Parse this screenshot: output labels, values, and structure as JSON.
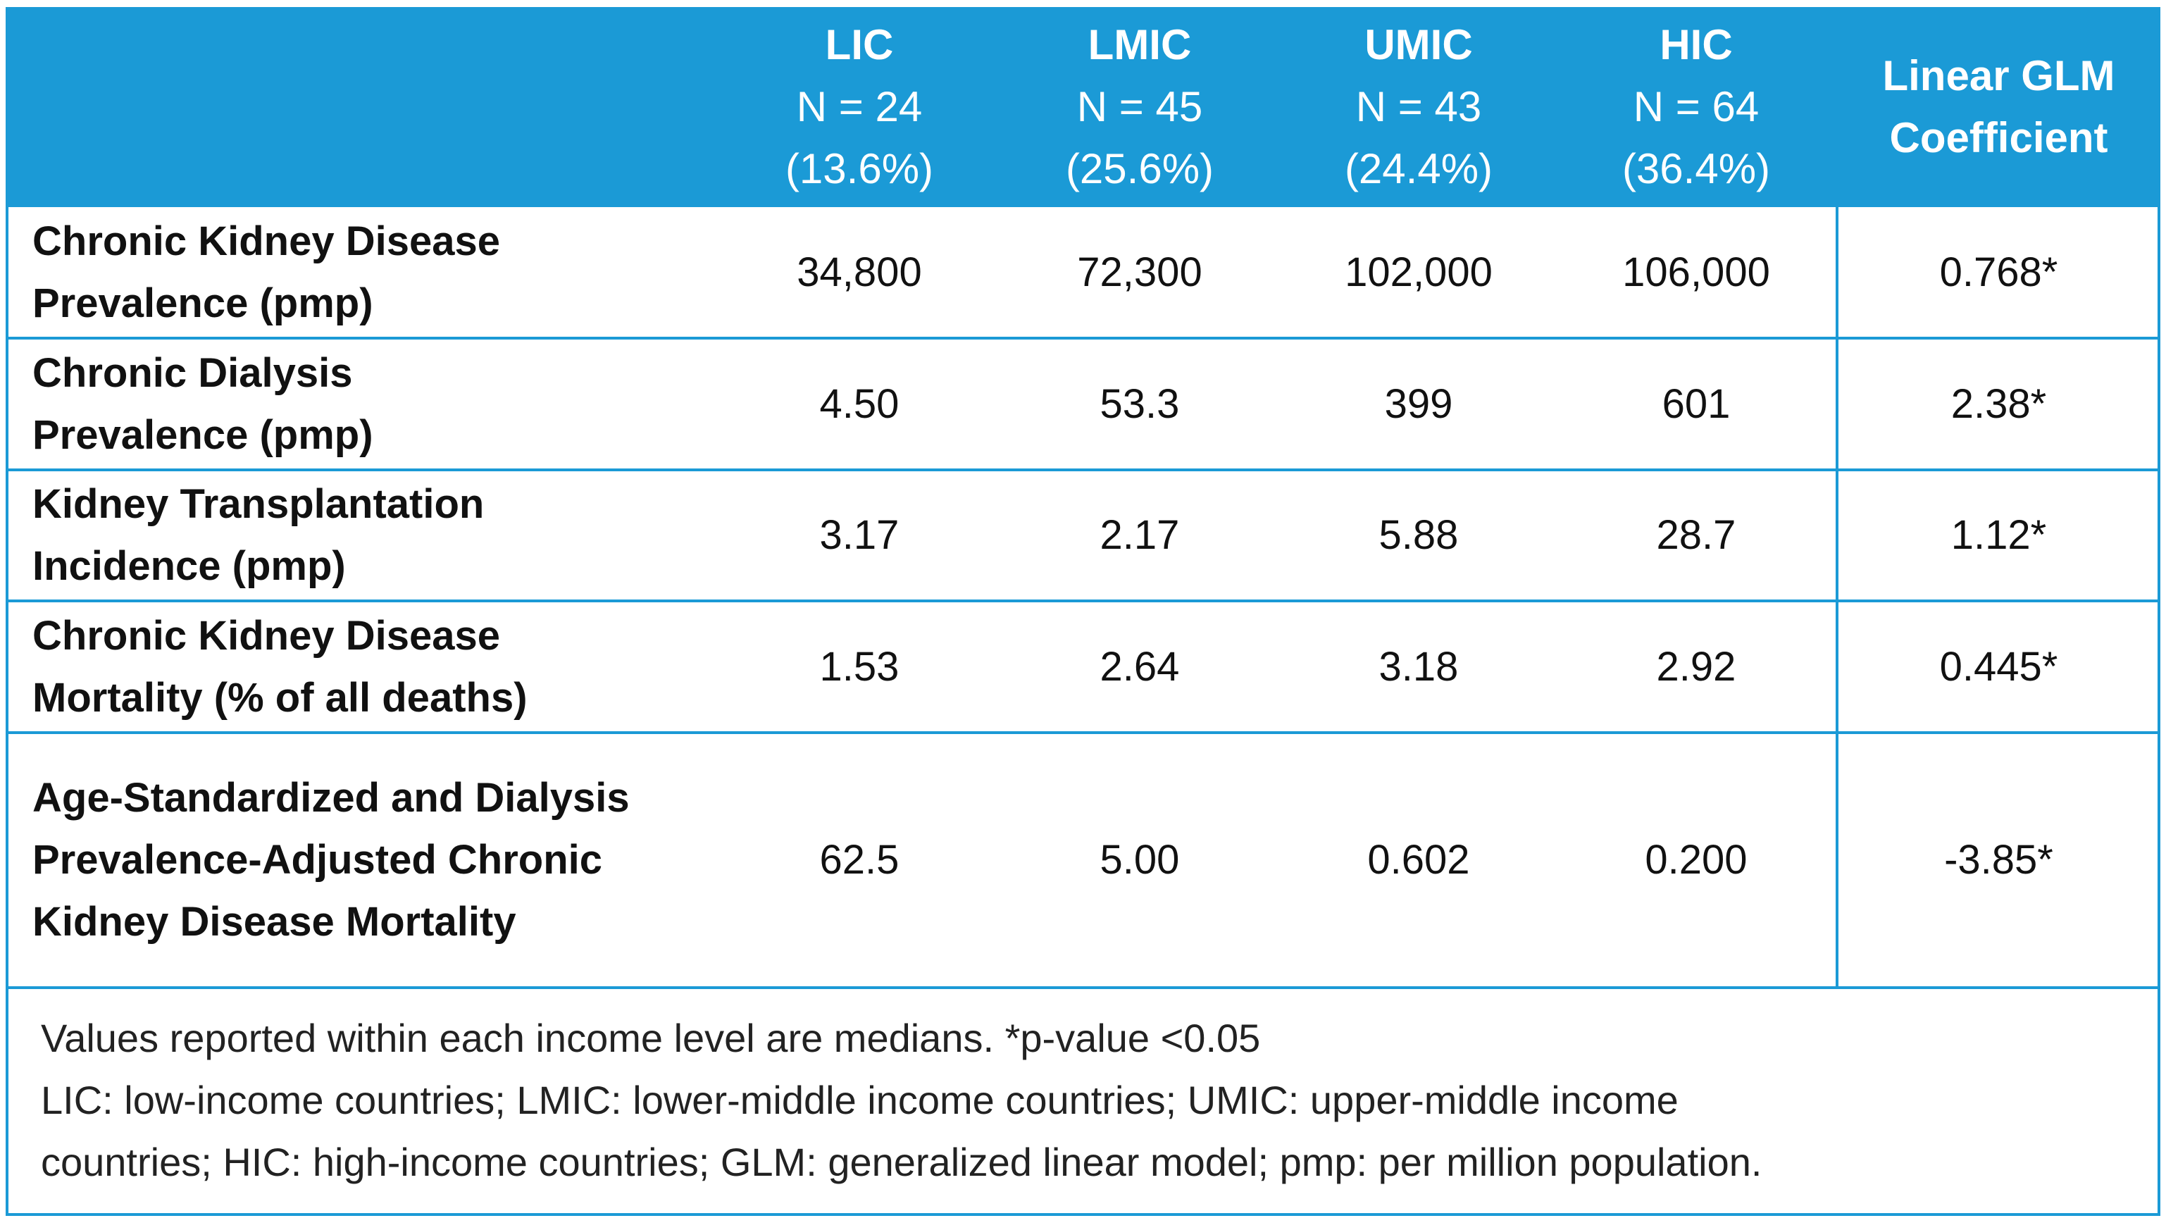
{
  "header": {
    "columns": [
      {
        "name": "LIC",
        "n": "N = 24",
        "pct": "(13.6%)"
      },
      {
        "name": "LMIC",
        "n": "N = 45",
        "pct": "(25.6%)"
      },
      {
        "name": "UMIC",
        "n": "N = 43",
        "pct": "(24.4%)"
      },
      {
        "name": "HIC",
        "n": "N = 64",
        "pct": "(36.4%)"
      }
    ],
    "coefficient": [
      "Linear GLM",
      "Coefficient"
    ]
  },
  "table": {
    "rows": [
      {
        "label": [
          "Chronic Kidney Disease",
          "Prevalence (pmp)"
        ],
        "values": [
          "34,800",
          "72,300",
          "102,000",
          "106,000"
        ],
        "coefficient": "0.768*"
      },
      {
        "label": [
          "Chronic Dialysis",
          "Prevalence (pmp)"
        ],
        "values": [
          "4.50",
          "53.3",
          "399",
          "601"
        ],
        "coefficient": "2.38*"
      },
      {
        "label": [
          "Kidney Transplantation",
          "Incidence (pmp)"
        ],
        "values": [
          "3.17",
          "2.17",
          "5.88",
          "28.7"
        ],
        "coefficient": "1.12*"
      },
      {
        "label": [
          "Chronic Kidney Disease",
          "Mortality (% of all deaths)"
        ],
        "values": [
          "1.53",
          "2.64",
          "3.18",
          "2.92"
        ],
        "coefficient": "0.445*"
      },
      {
        "label": [
          "Age-Standardized and Dialysis",
          "Prevalence-Adjusted Chronic",
          "Kidney Disease Mortality"
        ],
        "values": [
          "62.5",
          "5.00",
          "0.602",
          "0.200"
        ],
        "coefficient": "-3.85*"
      }
    ]
  },
  "footnote": [
    "Values reported within each income level are medians. *p-value <0.05",
    "LIC: low-income countries; LMIC: lower-middle income countries; UMIC: upper-middle income",
    "countries; HIC: high-income countries; GLM: generalized linear model; pmp: per million population."
  ]
}
